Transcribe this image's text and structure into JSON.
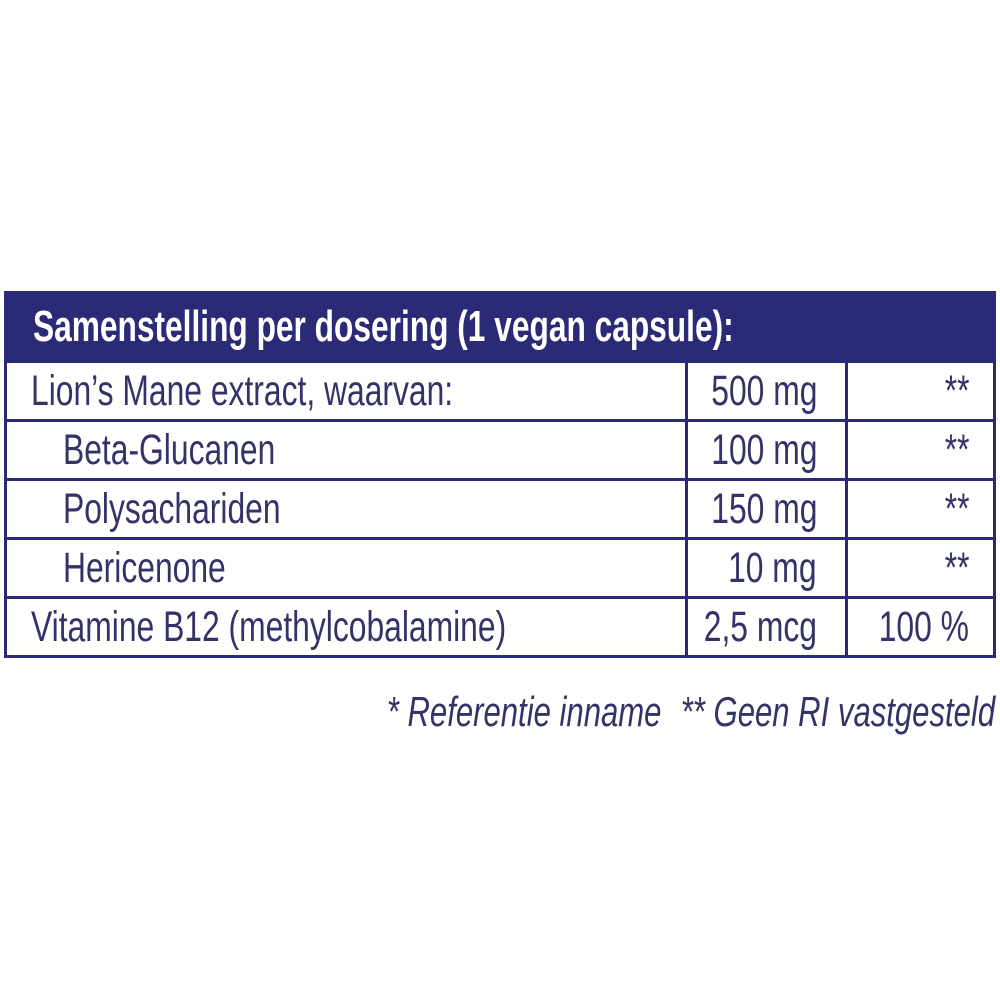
{
  "supplement_table": {
    "title": "Samenstelling per dosering (1 vegan capsule):",
    "rows": [
      {
        "name": "Lion’s Mane extract, waarvan:",
        "amount": "500 mg",
        "ri": "**"
      },
      {
        "name": "Beta-Glucanen",
        "amount": "100 mg",
        "ri": "**"
      },
      {
        "name": "Polysachariden",
        "amount": "150 mg",
        "ri": "**"
      },
      {
        "name": "Hericenone",
        "amount": "10 mg",
        "ri": "**"
      },
      {
        "name": "Vitamine B12 (methylcobalamine)",
        "amount": "2,5 mcg",
        "ri": "100 %"
      }
    ],
    "footnotes": {
      "reference_note": "* Referentie inname",
      "no_ri_note": "** Geen RI vastgesteld"
    },
    "colors": {
      "navy": "#2b2a76",
      "body_text": "#333367",
      "header_text": "#ffffff",
      "background": "#ffffff"
    }
  }
}
